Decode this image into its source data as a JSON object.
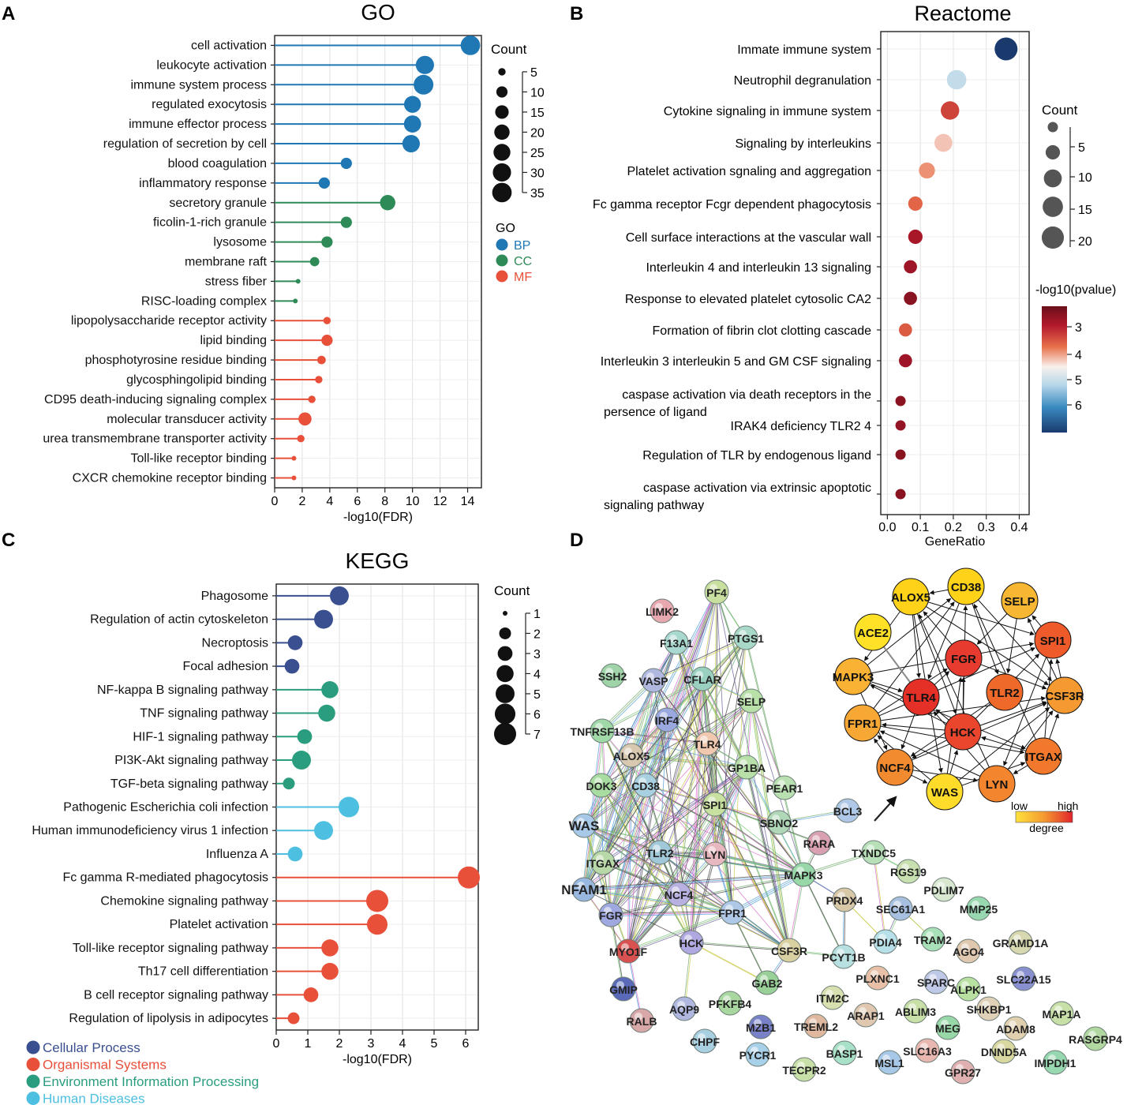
{
  "panels": {
    "A": {
      "letter": "A",
      "title": "GO",
      "chart_data": {
        "type": "lollipop",
        "title": "GO",
        "xlabel": "-log10(FDR)",
        "xlim": [
          0,
          15
        ],
        "xticks": [
          "0",
          "2",
          "4",
          "6",
          "8",
          "10",
          "12",
          "14"
        ],
        "tick_values": [
          0,
          2,
          4,
          6,
          8,
          10,
          12,
          14
        ],
        "categories": [
          "cell activation",
          "leukocyte activation",
          "immune system process",
          "regulated exocytosis",
          "immune effector process",
          "regulation of secretion by cell",
          "blood coagulation",
          "inflammatory response",
          "secretory granule",
          "ficolin-1-rich granule",
          "lysosome",
          "membrane raft",
          "stress fiber",
          "RISC-loading complex",
          "lipopolysaccharide receptor activity",
          "lipid binding",
          "phosphotyrosine residue binding",
          "glycosphingolipid binding",
          "CD95 death-inducing signaling complex",
          "molecular transducer activity",
          "urea transmembrane transporter activity",
          "Toll-like receptor binding",
          "CXCR chemokine receptor binding"
        ],
        "values": [
          14.2,
          10.9,
          10.8,
          10.0,
          10.0,
          9.9,
          5.2,
          3.6,
          8.2,
          5.2,
          3.8,
          2.9,
          1.7,
          1.5,
          3.8,
          3.8,
          3.4,
          3.2,
          2.7,
          2.2,
          1.9,
          1.4,
          1.4
        ],
        "counts": [
          35,
          30,
          36,
          25,
          26,
          27,
          10,
          10,
          20,
          10,
          10,
          7,
          4,
          4,
          5,
          10,
          6,
          5,
          5,
          14,
          5,
          4,
          4
        ],
        "groups": [
          "BP",
          "BP",
          "BP",
          "BP",
          "BP",
          "BP",
          "BP",
          "BP",
          "CC",
          "CC",
          "CC",
          "CC",
          "CC",
          "CC",
          "MF",
          "MF",
          "MF",
          "MF",
          "MF",
          "MF",
          "MF",
          "MF",
          "MF"
        ],
        "group_colors": {
          "BP": "#1f77b4",
          "CC": "#2e8b57",
          "MF": "#e8503a"
        },
        "size_legend_title": "Count",
        "size_legend_labels": [
          "5",
          "10",
          "15",
          "20",
          "25",
          "30",
          "35"
        ],
        "size_legend_values": [
          5,
          10,
          15,
          20,
          25,
          30,
          35
        ],
        "group_legend_title": "GO",
        "group_legend": [
          "BP",
          "CC",
          "MF"
        ]
      }
    },
    "B": {
      "letter": "B",
      "title": "Reactome",
      "chart_data": {
        "type": "scatter",
        "title": "Reactome",
        "xlabel": "GeneRatio",
        "xlim": [
          -0.02,
          0.43
        ],
        "xticks": [
          "0.0",
          "0.1",
          "0.2",
          "0.3",
          "0.4"
        ],
        "tick_values": [
          0.0,
          0.1,
          0.2,
          0.3,
          0.4
        ],
        "categories": [
          "Immate immune system",
          "Neutrophil degranulation",
          "Cytokine signaling in immune system",
          "Signaling by interleukins",
          "Platelet activation sgnaling and aggregation",
          "Fc gamma receptor Fcgr dependent phagocytosis",
          "Cell surface interactions at the vascular wall",
          "Interleukin 4 and interleukin 13 signaling",
          "Response to elevated platelet cytosolic CA2",
          "Formation of fibrin clot clotting cascade",
          "Interleukin 3 interleukin 5 and GM CSF signaling",
          "caspase activation via death receptors  in the persence of ligand",
          "IRAK4 deficiency TLR2 4",
          "Regulation of TLR by endogenous ligand",
          "caspase activation via extrinsic apoptotic signaling pathway"
        ],
        "label_lines": [
          [
            "Immate immune system"
          ],
          [
            "Neutrophil degranulation"
          ],
          [
            "Cytokine signaling in immune system"
          ],
          [
            "Signaling by interleukins"
          ],
          [
            "Platelet activation sgnaling and aggregation"
          ],
          [
            "Fc gamma receptor Fcgr dependent phagocytosis"
          ],
          [
            "Cell surface interactions at the vascular wall"
          ],
          [
            "Interleukin 4 and interleukin 13 signaling"
          ],
          [
            "Response to elevated platelet cytosolic CA2"
          ],
          [
            "Formation of fibrin clot clotting cascade"
          ],
          [
            "Interleukin 3 interleukin 5 and GM CSF signaling"
          ],
          [
            "caspase activation via death receptors  in the",
            "persence of ligand"
          ],
          [
            "IRAK4 deficiency TLR2 4"
          ],
          [
            "Regulation of TLR by endogenous ligand"
          ],
          [
            "caspase activation via extrinsic apoptotic",
            "signaling pathway"
          ]
        ],
        "x": [
          0.36,
          0.21,
          0.19,
          0.17,
          0.12,
          0.085,
          0.085,
          0.07,
          0.07,
          0.055,
          0.055,
          0.04,
          0.04,
          0.04,
          0.04
        ],
        "counts": [
          22,
          13,
          11,
          10,
          7,
          5,
          5,
          4,
          4,
          4,
          4,
          3,
          3,
          3,
          3
        ],
        "neg_log10_pvalue": [
          7.0,
          5.1,
          3.4,
          4.3,
          4.0,
          3.7,
          2.9,
          2.8,
          2.6,
          3.6,
          2.8,
          2.6,
          2.7,
          2.6,
          2.6
        ],
        "size_legend_title": "Count",
        "size_legend_labels": [
          "5",
          "10",
          "15",
          "20"
        ],
        "size_legend_values": [
          5,
          10,
          15,
          20
        ],
        "color_legend_title": "-log10(pvalue)",
        "color_legend_labels": [
          "3",
          "4",
          "5",
          "6"
        ],
        "color_legend_values": [
          3,
          4,
          5,
          6
        ],
        "color_range": [
          2.3,
          7.0
        ]
      }
    },
    "C": {
      "letter": "C",
      "title": "KEGG",
      "chart_data": {
        "type": "lollipop",
        "title": "KEGG",
        "xlabel": "-log10(FDR)",
        "xlim": [
          0,
          6.4
        ],
        "xticks": [
          "0",
          "1",
          "2",
          "3",
          "4",
          "5",
          "6"
        ],
        "tick_values": [
          0,
          1,
          2,
          3,
          4,
          5,
          6
        ],
        "categories": [
          "Phagosome",
          "Regulation of actin cytoskeleton",
          "Necroptosis",
          "Focal adhesion",
          "NF-kappa B signaling pathway",
          "TNF signaling pathway",
          "HIF-1 signaling pathway",
          "PI3K-Akt signaling pathway",
          "TGF-beta signaling pathway",
          "Pathogenic Escherichia coli infection",
          "Human immunodeficiency virus 1 infection",
          "Influenza A",
          "Fc gamma R-mediated phagocytosis",
          "Chemokine signaling pathway",
          "Platelet activation",
          "Toll-like receptor signaling pathway",
          "Th17 cell differentiation",
          "B cell receptor signaling pathway",
          "Regulation of lipolysis in adipocytes"
        ],
        "values": [
          2.0,
          1.5,
          0.6,
          0.5,
          1.7,
          1.6,
          0.9,
          0.8,
          0.4,
          2.3,
          1.5,
          0.6,
          6.1,
          3.2,
          3.2,
          1.7,
          1.7,
          1.1,
          0.55
        ],
        "counts": [
          5,
          5,
          3,
          3,
          4,
          4,
          3,
          5,
          2,
          6,
          5,
          3,
          7,
          7,
          6,
          4,
          4,
          3,
          2
        ],
        "groups": [
          "Cellular Process",
          "Cellular Process",
          "Cellular Process",
          "Cellular Process",
          "Environment Information Processing",
          "Environment Information Processing",
          "Environment Information Processing",
          "Environment Information Processing",
          "Environment Information Processing",
          "Human Diseases",
          "Human Diseases",
          "Human Diseases",
          "Organismal Systems",
          "Organismal Systems",
          "Organismal Systems",
          "Organismal Systems",
          "Organismal Systems",
          "Organismal Systems",
          "Organismal Systems"
        ],
        "group_colors": {
          "Cellular Process": "#3a4f8f",
          "Organismal Systems": "#e8503a",
          "Environment Information Processing": "#2a9d7f",
          "Human Diseases": "#4dbfe0"
        },
        "size_legend_title": "Count",
        "size_legend_labels": [
          "1",
          "2",
          "3",
          "4",
          "5",
          "6",
          "7"
        ],
        "size_legend_values": [
          1,
          2,
          3,
          4,
          5,
          6,
          7
        ],
        "group_legend": [
          "Cellular Process",
          "Organismal Systems",
          "Environment Information Processing",
          "Human Diseases"
        ]
      }
    },
    "D": {
      "letter": "D",
      "network": {
        "nodes": [
          {
            "id": "PF4",
            "c": "#c8dfa0"
          },
          {
            "id": "LIMK2",
            "c": "#e8a8b0"
          },
          {
            "id": "PTGS1",
            "c": "#a8d8c8"
          },
          {
            "id": "F13A1",
            "c": "#a8d8d0"
          },
          {
            "id": "SSH2",
            "c": "#a0d4a8"
          },
          {
            "id": "VASP",
            "c": "#b0b8e0"
          },
          {
            "id": "CFLAR",
            "c": "#9ad0c0"
          },
          {
            "id": "SELP",
            "c": "#b8e0a8"
          },
          {
            "id": "IRF4",
            "c": "#9aa8e0"
          },
          {
            "id": "TNFRSF13B",
            "c": "#a0d8a8"
          },
          {
            "id": "TLR4",
            "c": "#f0c8b0"
          },
          {
            "id": "ALOX5",
            "c": "#d8c8b0"
          },
          {
            "id": "GP1BA",
            "c": "#b8e0a8"
          },
          {
            "id": "DOK3",
            "c": "#a8dca0"
          },
          {
            "id": "CD38",
            "c": "#a8d0e0"
          },
          {
            "id": "PEAR1",
            "c": "#b8e0b0"
          },
          {
            "id": "SPI1",
            "c": "#c8e0a0"
          },
          {
            "id": "SBNO2",
            "c": "#b0d8b8"
          },
          {
            "id": "BCL3",
            "c": "#b0c8e8"
          },
          {
            "id": "WAS",
            "c": "#a8c8e8"
          },
          {
            "id": "RARA",
            "c": "#d8a0b0"
          },
          {
            "id": "TXNDC5",
            "c": "#b8e0b8"
          },
          {
            "id": "ITGAX",
            "c": "#b8d8a8"
          },
          {
            "id": "TLR2",
            "c": "#a0c8d8"
          },
          {
            "id": "LYN",
            "c": "#e8b8c0"
          },
          {
            "id": "MAPK3",
            "c": "#98d8a8"
          },
          {
            "id": "RGS19",
            "c": "#c8e0b0"
          },
          {
            "id": "NFAM1",
            "c": "#98b8e0"
          },
          {
            "id": "NCF4",
            "c": "#b8b0e0"
          },
          {
            "id": "PDLIM7",
            "c": "#d8e8d0"
          },
          {
            "id": "PRDX4",
            "c": "#d8c8a8"
          },
          {
            "id": "SEC61A1",
            "c": "#a8c0e0"
          },
          {
            "id": "MMP25",
            "c": "#98d8b0"
          },
          {
            "id": "FGR",
            "c": "#a0a8e0"
          },
          {
            "id": "FPR1",
            "c": "#b0c8e8"
          },
          {
            "id": "TRAM2",
            "c": "#a8e0b8"
          },
          {
            "id": "GRAMD1A",
            "c": "#d8d8b0"
          },
          {
            "id": "MYO1F",
            "c": "#d85050"
          },
          {
            "id": "HCK",
            "c": "#b0a8e0"
          },
          {
            "id": "CSF3R",
            "c": "#d8d0a0"
          },
          {
            "id": "PCYT1B",
            "c": "#b8e0e0"
          },
          {
            "id": "PDIA4",
            "c": "#b8e0e8"
          },
          {
            "id": "AGO4",
            "c": "#e0c8b0"
          },
          {
            "id": "GMIP",
            "c": "#5a6ab8"
          },
          {
            "id": "GAB2",
            "c": "#98d098"
          },
          {
            "id": "PLXNC1",
            "c": "#e8c0a8"
          },
          {
            "id": "SPARC",
            "c": "#c0c8e8"
          },
          {
            "id": "ALPK1",
            "c": "#b8e0a0"
          },
          {
            "id": "SLC22A15",
            "c": "#8890d0"
          },
          {
            "id": "RALB",
            "c": "#d8a8a8"
          },
          {
            "id": "AQP9",
            "c": "#b0b8e0"
          },
          {
            "id": "PFKFB4",
            "c": "#a8d8a0"
          },
          {
            "id": "ITM2C",
            "c": "#d8e0b0"
          },
          {
            "id": "ARAP1",
            "c": "#e0c8b0"
          },
          {
            "id": "ABLIM3",
            "c": "#c8e0a8"
          },
          {
            "id": "SHKBP1",
            "c": "#e0d0b8"
          },
          {
            "id": "MAP1A",
            "c": "#c8e0a8"
          },
          {
            "id": "MZB1",
            "c": "#7880c8"
          },
          {
            "id": "TREML2",
            "c": "#e0b8a0"
          },
          {
            "id": "MEG",
            "c": "#98d8a8"
          },
          {
            "id": "ADAM8",
            "c": "#e0d0b0"
          },
          {
            "id": "RASGRP4",
            "c": "#b0d8a0"
          },
          {
            "id": "CHPF",
            "c": "#a8d0e0"
          },
          {
            "id": "PYCR1",
            "c": "#a8d0e8"
          },
          {
            "id": "BASP1",
            "c": "#a8e0c8"
          },
          {
            "id": "SLC16A3",
            "c": "#e8b8b0"
          },
          {
            "id": "DNND5A",
            "c": "#d8d8a0"
          },
          {
            "id": "TECPR2",
            "c": "#c8e0a8"
          },
          {
            "id": "MSL1",
            "c": "#a8c8e8"
          },
          {
            "id": "GPR27",
            "c": "#e0b0b0"
          },
          {
            "id": "IMPDH1",
            "c": "#98d8b0"
          }
        ],
        "hub_nodes": [
          {
            "id": "ALOX5",
            "c": "#ffd21a"
          },
          {
            "id": "CD38",
            "c": "#ffd21a"
          },
          {
            "id": "SELP",
            "c": "#f7b733"
          },
          {
            "id": "ACE2",
            "c": "#ffe227"
          },
          {
            "id": "SPI1",
            "c": "#ee5a2a"
          },
          {
            "id": "MAPK3",
            "c": "#f9b233"
          },
          {
            "id": "FGR",
            "c": "#e63b2e"
          },
          {
            "id": "TLR4",
            "c": "#e53028"
          },
          {
            "id": "TLR2",
            "c": "#ef6a2a"
          },
          {
            "id": "CSF3R",
            "c": "#f49a30"
          },
          {
            "id": "FPR1",
            "c": "#f7a734"
          },
          {
            "id": "HCK",
            "c": "#ea452d"
          },
          {
            "id": "ITGAX",
            "c": "#f2782c"
          },
          {
            "id": "NCF4",
            "c": "#f28a2f"
          },
          {
            "id": "LYN",
            "c": "#f2852e"
          },
          {
            "id": "WAS",
            "c": "#ffdb2a"
          }
        ],
        "degree_low": "low",
        "degree_high": "high",
        "degree_label": "degree"
      }
    }
  }
}
